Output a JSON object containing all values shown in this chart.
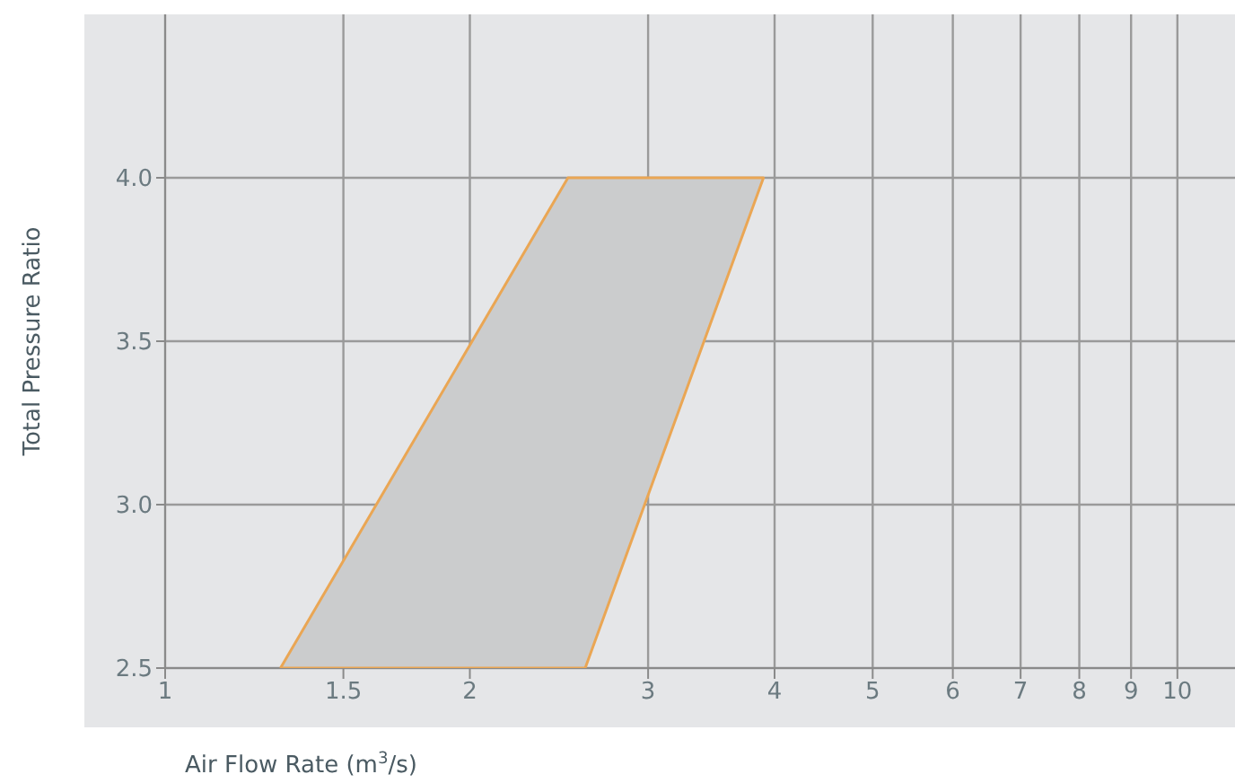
{
  "chart_data": {
    "type": "area",
    "xlabel": "Air Flow Rate (m$^{3}$/s)",
    "ylabel": "Total Pressure Ratio",
    "log": "x",
    "grid": true,
    "xlim": [
      1,
      11.4
    ],
    "xticks": [
      1,
      1.5,
      2,
      3,
      4,
      5,
      6,
      7,
      8,
      9,
      10
    ],
    "ylim": [
      2.5,
      4.5
    ],
    "yticks": [
      {
        "value": 2.5,
        "label": "2.5"
      },
      {
        "value": 3,
        "label": "3.0"
      },
      {
        "value": 3.5,
        "label": "3.5"
      },
      {
        "value": 4,
        "label": "4.0"
      }
    ],
    "series": [
      {
        "color": "#cbcccd",
        "x": [
          1.3,
          2.5,
          3.9,
          2.6,
          1.3
        ],
        "values": [
          2.5,
          4.0,
          4.0,
          2.5,
          2.5
        ]
      }
    ]
  }
}
